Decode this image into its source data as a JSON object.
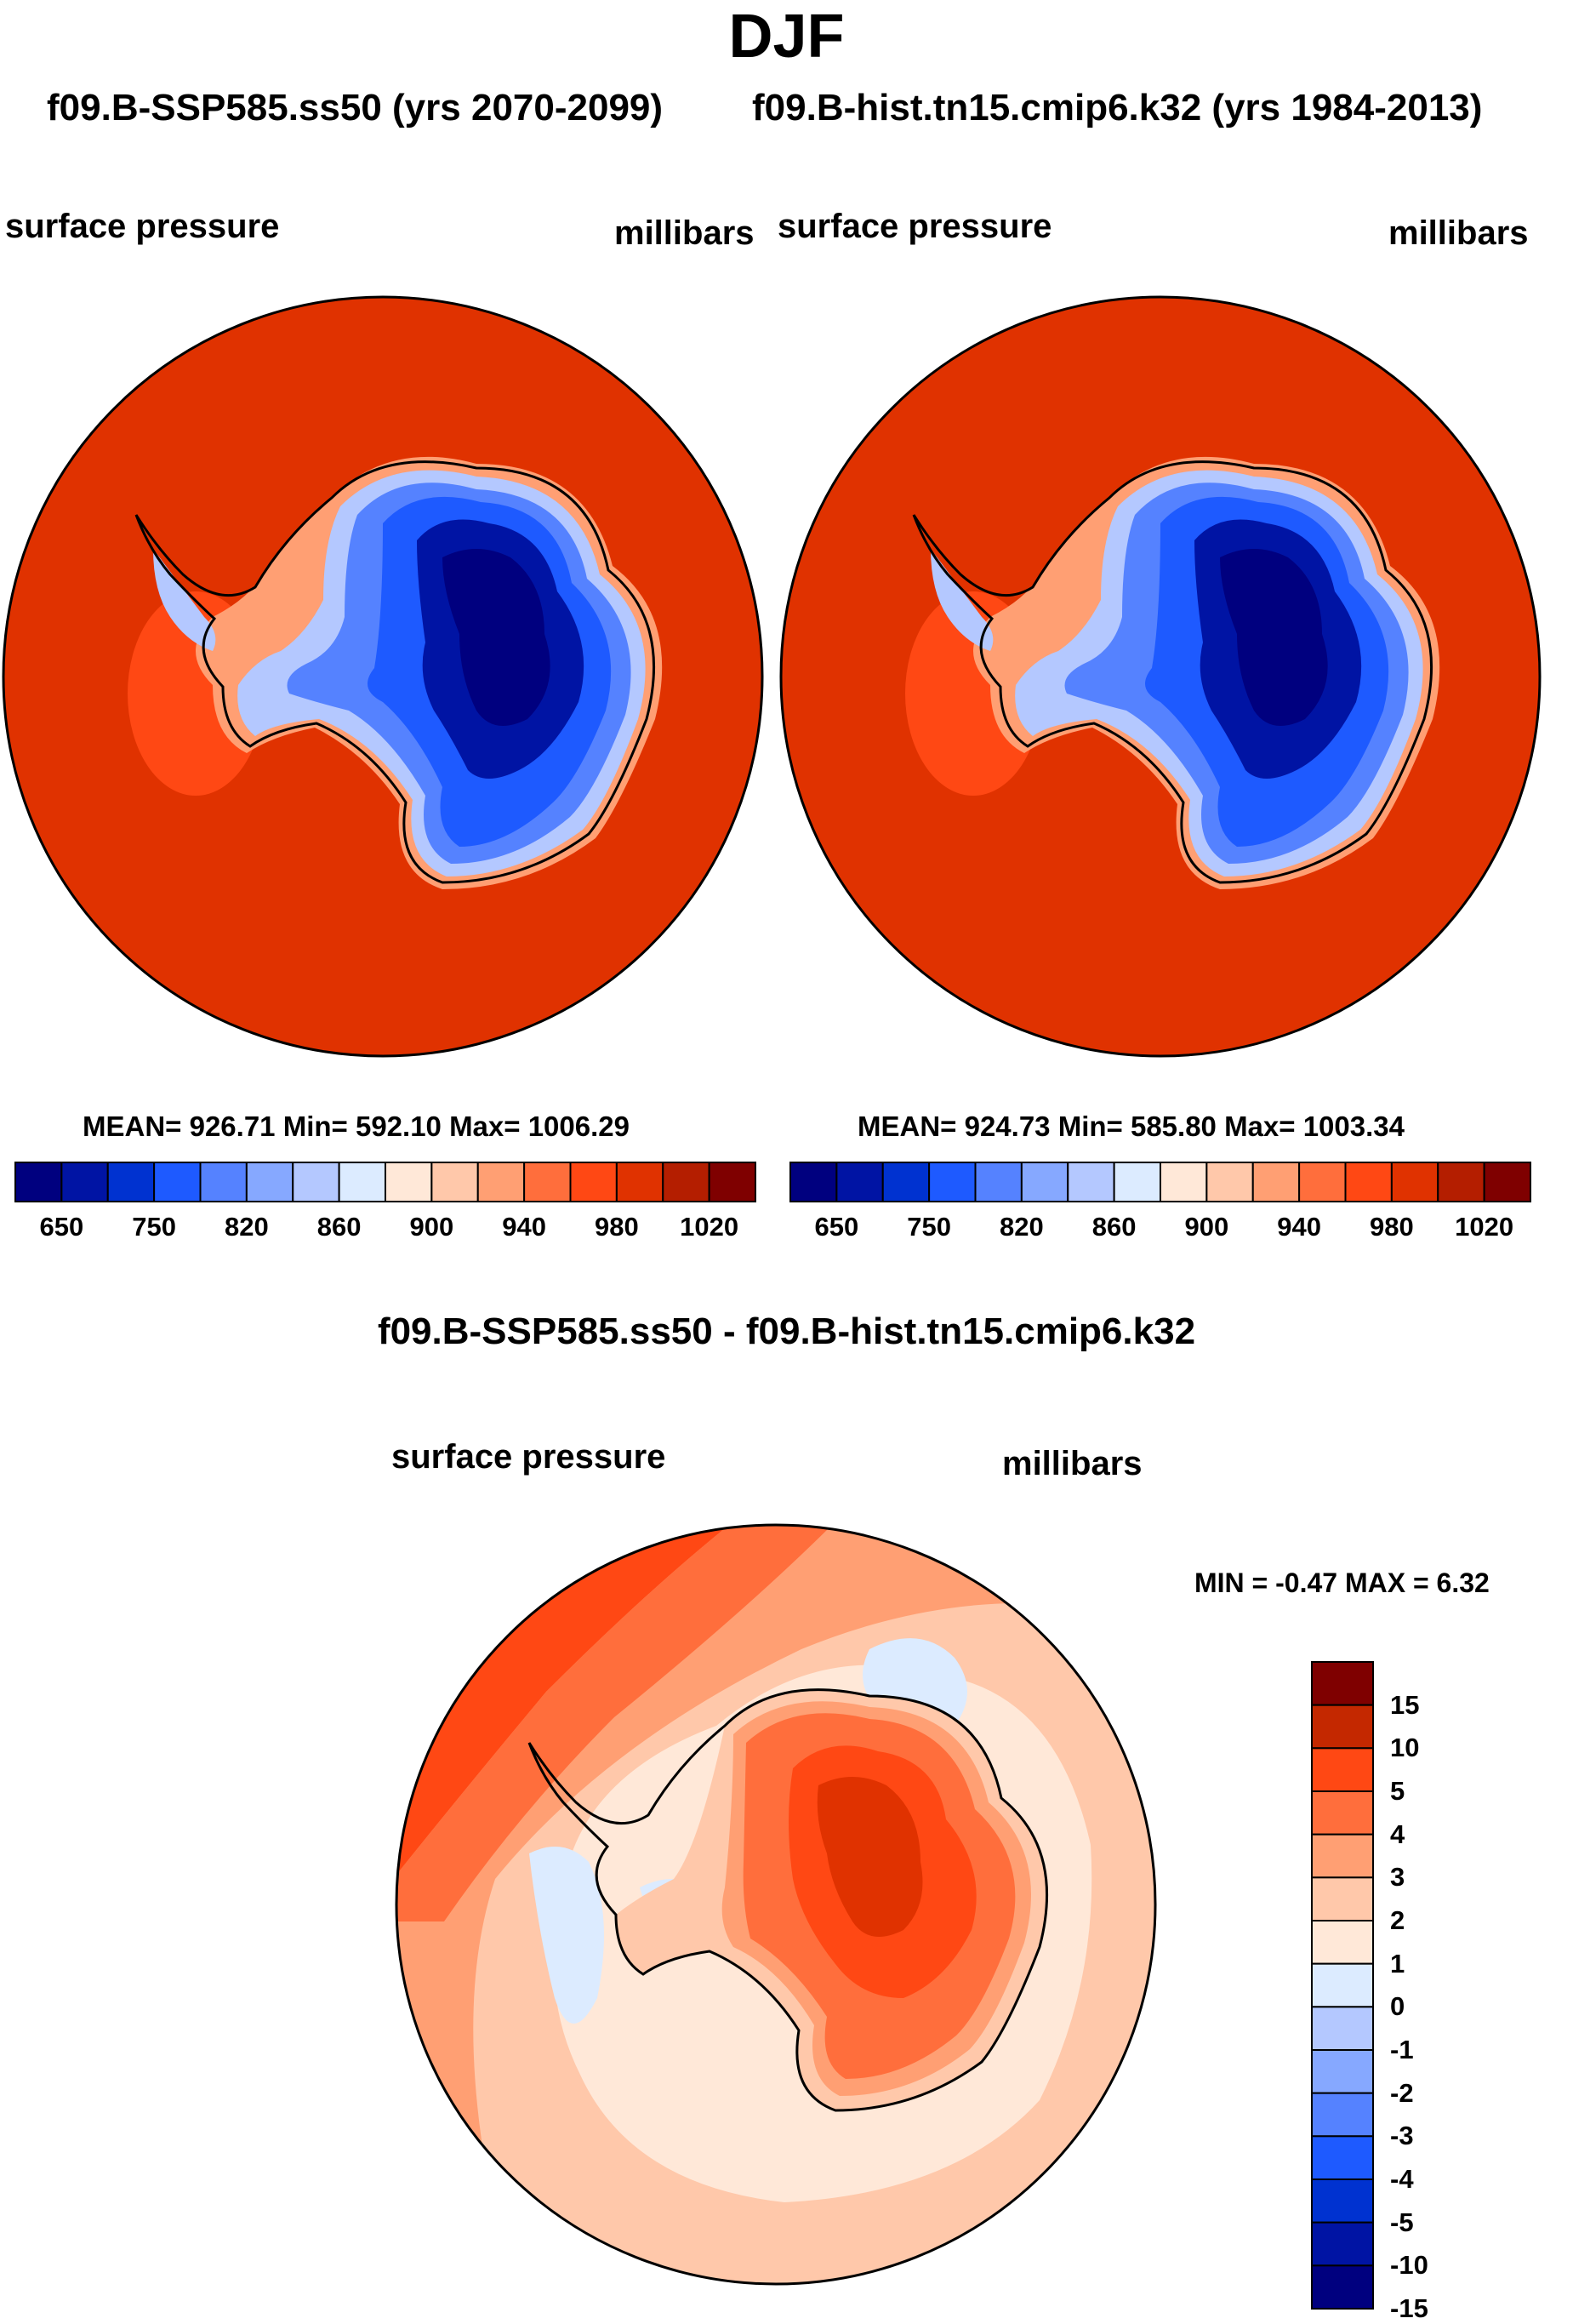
{
  "main_title": "DJF",
  "subtitles": {
    "left": "f09.B-SSP585.ss50 (yrs 2070-2099)",
    "right": "f09.B-hist.tn15.cmip6.k32 (yrs 1984-2013)"
  },
  "colors": {
    "ocean": "#e03200",
    "dark_rim": "#c42800",
    "coast": "#000000",
    "seq": [
      "#00007f",
      "#0014a4",
      "#0032d0",
      "#1e5aff",
      "#5582ff",
      "#86a8ff",
      "#b4c8ff",
      "#dcebff",
      "#ffe8d8",
      "#ffc8aa",
      "#ff9f73",
      "#ff6e3c",
      "#ff4814",
      "#e03200",
      "#b41e00",
      "#7f0000"
    ],
    "diff": [
      "#00007f",
      "#0014a4",
      "#0032d0",
      "#1e5aff",
      "#5582ff",
      "#86a8ff",
      "#b4c8ff",
      "#dcebff",
      "#ffe8d8",
      "#ffc8aa",
      "#ff9f73",
      "#ff6e3c",
      "#ff4814",
      "#c42800",
      "#7f0000"
    ]
  },
  "chart_data": [
    {
      "type": "heatmap",
      "panel": "left",
      "left_label": "surface pressure",
      "right_label": "millibars",
      "stats": "MEAN= 926.71  Min= 592.10  Max= 1006.29",
      "mean": 926.71,
      "min": 592.1,
      "max": 1006.29,
      "colorbar_ticks": [
        "650",
        "750",
        "820",
        "860",
        "900",
        "940",
        "980",
        "1020"
      ]
    },
    {
      "type": "heatmap",
      "panel": "right",
      "left_label": "surface pressure",
      "right_label": "millibars",
      "stats": "MEAN= 924.73  Min= 585.80  Max= 1003.34",
      "mean": 924.73,
      "min": 585.8,
      "max": 1003.34,
      "colorbar_ticks": [
        "650",
        "750",
        "820",
        "860",
        "900",
        "940",
        "980",
        "1020"
      ]
    },
    {
      "type": "heatmap",
      "panel": "difference",
      "title": "f09.B-SSP585.ss50 - f09.B-hist.tn15.cmip6.k32",
      "left_label": "surface pressure",
      "right_label": "millibars",
      "stats": "MIN =  -0.47 MAX =   6.32",
      "min": -0.47,
      "max": 6.32,
      "colorbar_ticks": [
        "15",
        "10",
        "5",
        "4",
        "3",
        "2",
        "1",
        "0",
        "-1",
        "-2",
        "-3",
        "-4",
        "-5",
        "-10",
        "-15"
      ]
    }
  ]
}
